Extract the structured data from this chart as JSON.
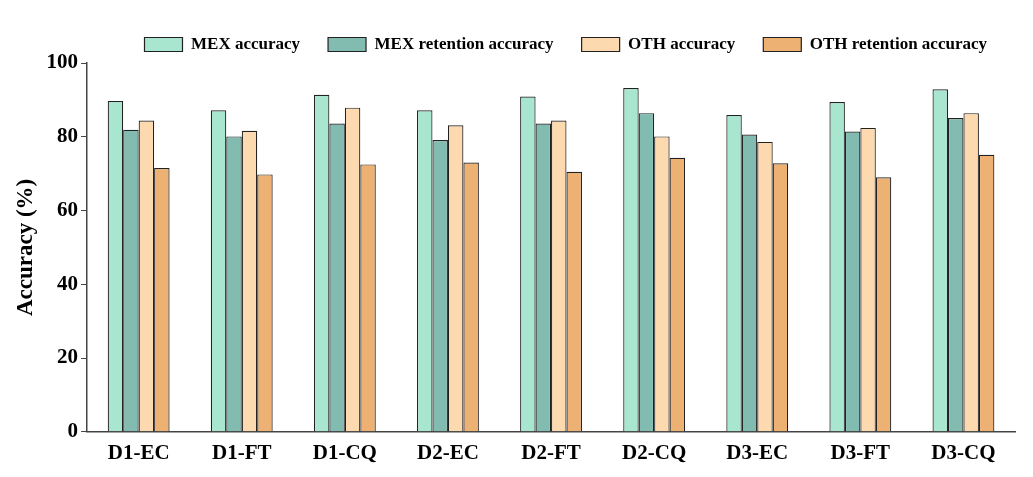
{
  "chart_data": {
    "type": "bar",
    "ylabel": "Accuracy (%)",
    "categories": [
      "D1-EC",
      "D1-FT",
      "D1-CQ",
      "D2-EC",
      "D2-FT",
      "D2-CQ",
      "D3-EC",
      "D3-FT",
      "D3-CQ"
    ],
    "series": [
      {
        "name": "MEX accuracy",
        "color": "#a8e6cf",
        "values": [
          89.7,
          87.2,
          91.4,
          87.2,
          90.9,
          93.2,
          85.9,
          89.4,
          92.9
        ]
      },
      {
        "name": "MEX retention accuracy",
        "color": "#82bcb0",
        "values": [
          81.9,
          80.1,
          83.6,
          79.1,
          83.6,
          86.4,
          80.6,
          81.4,
          85.1
        ]
      },
      {
        "name": "OTH accuracy",
        "color": "#fdd9b0",
        "values": [
          84.4,
          81.6,
          87.9,
          83.1,
          84.4,
          80.1,
          78.6,
          82.4,
          86.4
        ]
      },
      {
        "name": "OTH retention accuracy",
        "color": "#ecb173",
        "values": [
          71.5,
          69.8,
          72.5,
          73.0,
          70.5,
          74.3,
          72.8,
          69.0,
          75.1
        ]
      }
    ],
    "ylim": [
      0,
      100
    ],
    "yticks": [
      0,
      20,
      40,
      60,
      80,
      100
    ],
    "grid": false,
    "legend": "top"
  }
}
